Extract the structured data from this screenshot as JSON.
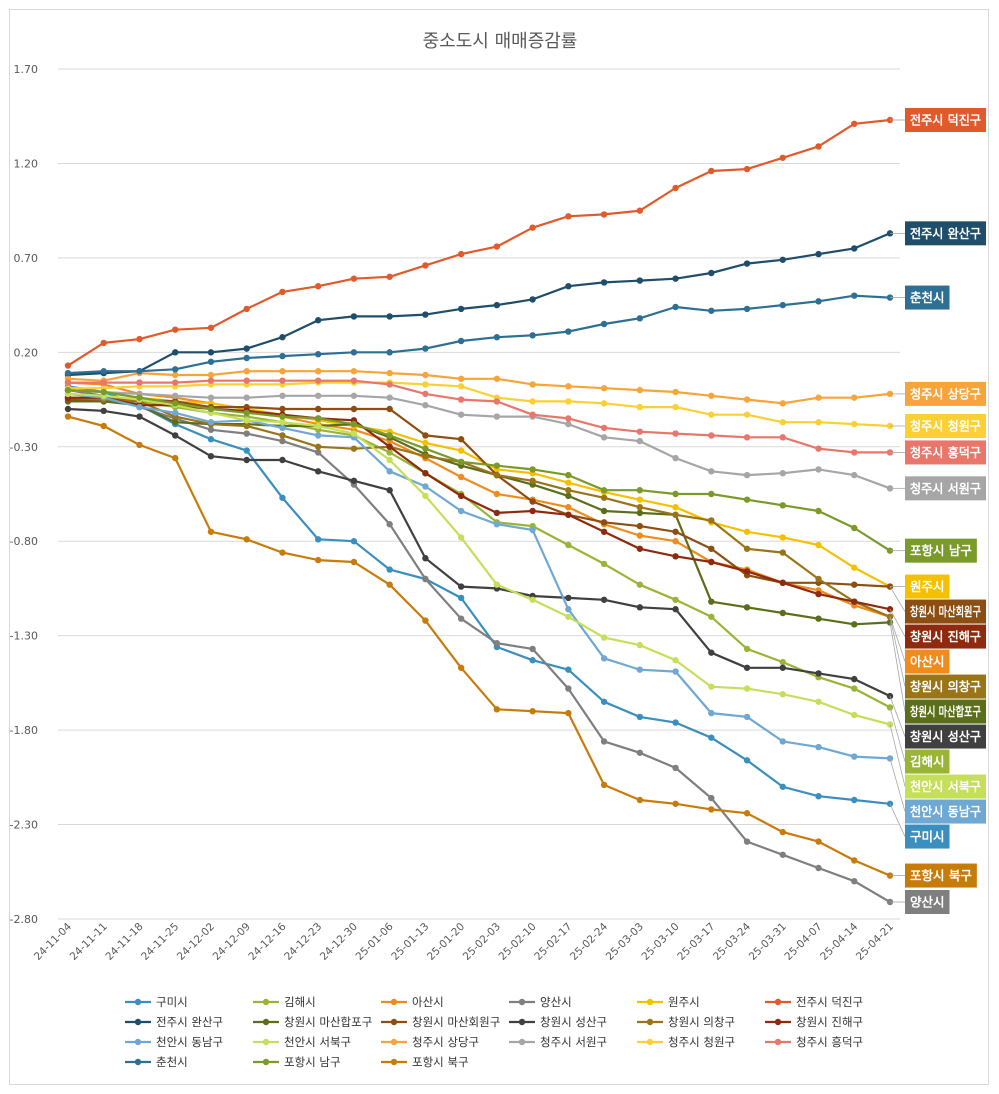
{
  "chart_data": {
    "type": "line",
    "title": "중소도시 매매증감률",
    "xlabel": "",
    "ylabel": "",
    "ylim": [
      -2.8,
      1.7
    ],
    "yticks": [
      "1.70",
      "1.20",
      "0.70",
      "0.20",
      "-0.30",
      "-0.80",
      "-1.30",
      "-1.80",
      "-2.30",
      "-2.80"
    ],
    "categories": [
      "24-11-04",
      "24-11-11",
      "24-11-18",
      "24-11-25",
      "24-12-02",
      "24-12-09",
      "24-12-16",
      "24-12-23",
      "24-12-30",
      "25-01-06",
      "25-01-13",
      "25-01-20",
      "25-02-03",
      "25-02-10",
      "25-02-17",
      "25-02-24",
      "25-03-03",
      "25-03-10",
      "25-03-17",
      "25-03-24",
      "25-03-31",
      "25-04-07",
      "25-04-14",
      "25-04-21"
    ],
    "series": [
      {
        "name": "구미시",
        "color": "#3a8fbf",
        "values": [
          0.02,
          -0.01,
          -0.08,
          -0.18,
          -0.26,
          -0.32,
          -0.57,
          -0.79,
          -0.8,
          -0.95,
          -1.0,
          -1.1,
          -1.36,
          -1.43,
          -1.48,
          -1.65,
          -1.73,
          -1.76,
          -1.84,
          -1.96,
          -2.1,
          -2.15,
          -2.17,
          -2.19
        ],
        "end_label": "구미시"
      },
      {
        "name": "김해시",
        "color": "#9ab536",
        "values": [
          0.0,
          -0.03,
          -0.06,
          -0.09,
          -0.12,
          -0.14,
          -0.17,
          -0.21,
          -0.24,
          -0.33,
          -0.44,
          -0.55,
          -0.7,
          -0.72,
          -0.82,
          -0.92,
          -1.03,
          -1.11,
          -1.2,
          -1.37,
          -1.44,
          -1.52,
          -1.58,
          -1.68
        ],
        "end_label": "김해시"
      },
      {
        "name": "아산시",
        "color": "#f08c1e",
        "values": [
          0.04,
          0.03,
          -0.02,
          -0.04,
          -0.07,
          -0.1,
          -0.14,
          -0.18,
          -0.21,
          -0.27,
          -0.36,
          -0.46,
          -0.55,
          -0.58,
          -0.62,
          -0.71,
          -0.77,
          -0.8,
          -0.91,
          -0.95,
          -1.02,
          -1.06,
          -1.14,
          -1.2
        ],
        "end_label": "아산시"
      },
      {
        "name": "양산시",
        "color": "#7f7f7f",
        "values": [
          0.0,
          -0.03,
          -0.09,
          -0.15,
          -0.21,
          -0.23,
          -0.27,
          -0.33,
          -0.5,
          -0.71,
          -1.0,
          -1.21,
          -1.34,
          -1.37,
          -1.58,
          -1.86,
          -1.92,
          -2.0,
          -2.16,
          -2.39,
          -2.46,
          -2.53,
          -2.6,
          -2.71
        ],
        "end_label": "양산시"
      },
      {
        "name": "원주시",
        "color": "#f5c000",
        "values": [
          0.0,
          -0.01,
          -0.04,
          -0.06,
          -0.07,
          -0.1,
          -0.13,
          -0.16,
          -0.19,
          -0.22,
          -0.28,
          -0.32,
          -0.42,
          -0.44,
          -0.49,
          -0.54,
          -0.58,
          -0.62,
          -0.7,
          -0.75,
          -0.78,
          -0.82,
          -0.94,
          -1.04
        ],
        "end_label": "원주시"
      },
      {
        "name": "전주시 덕진구",
        "color": "#e05a2b",
        "values": [
          0.13,
          0.25,
          0.27,
          0.32,
          0.33,
          0.43,
          0.52,
          0.55,
          0.59,
          0.6,
          0.66,
          0.72,
          0.76,
          0.86,
          0.92,
          0.93,
          0.95,
          1.07,
          1.16,
          1.17,
          1.23,
          1.29,
          1.41,
          1.43
        ],
        "end_label": "전주시 덕진구"
      },
      {
        "name": "전주시 완산구",
        "color": "#1f4e6b",
        "values": [
          0.08,
          0.09,
          0.1,
          0.2,
          0.2,
          0.22,
          0.28,
          0.37,
          0.39,
          0.39,
          0.4,
          0.43,
          0.45,
          0.48,
          0.55,
          0.57,
          0.58,
          0.59,
          0.62,
          0.67,
          0.69,
          0.72,
          0.75,
          0.83
        ],
        "end_label": "전주시 완산구"
      },
      {
        "name": "창원시 마산합포구",
        "color": "#5b6e1a",
        "values": [
          -0.06,
          -0.06,
          -0.08,
          -0.17,
          -0.18,
          -0.18,
          -0.19,
          -0.19,
          -0.18,
          -0.25,
          -0.34,
          -0.4,
          -0.45,
          -0.5,
          -0.56,
          -0.64,
          -0.65,
          -0.66,
          -1.12,
          -1.15,
          -1.18,
          -1.21,
          -1.24,
          -1.23
        ],
        "end_label": "창원시 마산합포구"
      },
      {
        "name": "창원시 마산회원구",
        "color": "#8c4e12",
        "values": [
          -0.05,
          -0.05,
          -0.05,
          -0.06,
          -0.09,
          -0.09,
          -0.1,
          -0.1,
          -0.1,
          -0.1,
          -0.24,
          -0.26,
          -0.45,
          -0.59,
          -0.66,
          -0.7,
          -0.72,
          -0.75,
          -0.84,
          -0.98,
          -1.02,
          -1.02,
          -1.03,
          -1.04
        ],
        "end_label": "창원시 마산회원구"
      },
      {
        "name": "창원시 성산구",
        "color": "#404040",
        "values": [
          -0.1,
          -0.11,
          -0.14,
          -0.24,
          -0.35,
          -0.37,
          -0.37,
          -0.43,
          -0.48,
          -0.53,
          -0.89,
          -1.04,
          -1.05,
          -1.09,
          -1.1,
          -1.11,
          -1.15,
          -1.16,
          -1.39,
          -1.47,
          -1.47,
          -1.5,
          -1.53,
          -1.62
        ],
        "end_label": "창원시 성산구"
      },
      {
        "name": "창원시 의창구",
        "color": "#9a7418",
        "values": [
          -0.04,
          -0.05,
          -0.06,
          -0.14,
          -0.18,
          -0.19,
          -0.24,
          -0.3,
          -0.31,
          -0.3,
          -0.35,
          -0.38,
          -0.45,
          -0.48,
          -0.53,
          -0.57,
          -0.62,
          -0.66,
          -0.69,
          -0.84,
          -0.86,
          -1.0,
          -1.12,
          -1.2
        ],
        "end_label": "창원시 의창구"
      },
      {
        "name": "창원시 진해구",
        "color": "#8e2a0e",
        "values": [
          -0.04,
          -0.04,
          -0.08,
          -0.08,
          -0.1,
          -0.11,
          -0.13,
          -0.15,
          -0.16,
          -0.3,
          -0.44,
          -0.56,
          -0.65,
          -0.64,
          -0.66,
          -0.75,
          -0.84,
          -0.88,
          -0.91,
          -0.96,
          -1.02,
          -1.08,
          -1.12,
          -1.16
        ],
        "end_label": "창원시 진해구"
      },
      {
        "name": "천안시 동남구",
        "color": "#6fa8d2",
        "values": [
          -0.02,
          -0.04,
          -0.09,
          -0.12,
          -0.17,
          -0.16,
          -0.2,
          -0.24,
          -0.25,
          -0.43,
          -0.51,
          -0.64,
          -0.71,
          -0.74,
          -1.16,
          -1.42,
          -1.48,
          -1.49,
          -1.71,
          -1.73,
          -1.86,
          -1.89,
          -1.94,
          -1.95
        ],
        "end_label": "천안시 동남구"
      },
      {
        "name": "천안시 서북구",
        "color": "#c5df5a",
        "values": [
          -0.02,
          -0.03,
          -0.05,
          -0.08,
          -0.12,
          -0.16,
          -0.17,
          -0.19,
          -0.23,
          -0.37,
          -0.56,
          -0.78,
          -1.03,
          -1.11,
          -1.2,
          -1.31,
          -1.35,
          -1.43,
          -1.57,
          -1.58,
          -1.61,
          -1.65,
          -1.72,
          -1.77
        ],
        "end_label": "천안시 서북구"
      },
      {
        "name": "청주시 상당구",
        "color": "#f7a43a",
        "values": [
          0.06,
          0.05,
          0.09,
          0.08,
          0.08,
          0.1,
          0.1,
          0.1,
          0.1,
          0.09,
          0.08,
          0.06,
          0.06,
          0.03,
          0.02,
          0.01,
          0.0,
          -0.01,
          -0.03,
          -0.05,
          -0.07,
          -0.04,
          -0.04,
          -0.02
        ],
        "end_label": "청주시 상당구"
      },
      {
        "name": "청주시 서원구",
        "color": "#a6a6a6",
        "values": [
          0.0,
          -0.01,
          -0.02,
          -0.03,
          -0.04,
          -0.04,
          -0.03,
          -0.03,
          -0.03,
          -0.04,
          -0.08,
          -0.13,
          -0.14,
          -0.14,
          -0.18,
          -0.25,
          -0.27,
          -0.36,
          -0.43,
          -0.45,
          -0.44,
          -0.42,
          -0.45,
          -0.52
        ],
        "end_label": "청주시 서원구"
      },
      {
        "name": "청주시 청원구",
        "color": "#fbd034",
        "values": [
          0.01,
          0.01,
          0.02,
          0.02,
          0.03,
          0.03,
          0.03,
          0.04,
          0.04,
          0.04,
          0.03,
          0.02,
          -0.04,
          -0.06,
          -0.06,
          -0.07,
          -0.09,
          -0.09,
          -0.13,
          -0.13,
          -0.17,
          -0.17,
          -0.18,
          -0.19
        ],
        "end_label": "청주시 청원구"
      },
      {
        "name": "청주시 흥덕구",
        "color": "#e8766a",
        "values": [
          0.04,
          0.04,
          0.04,
          0.04,
          0.05,
          0.05,
          0.05,
          0.05,
          0.05,
          0.03,
          -0.02,
          -0.05,
          -0.06,
          -0.13,
          -0.15,
          -0.2,
          -0.22,
          -0.23,
          -0.24,
          -0.25,
          -0.25,
          -0.31,
          -0.33,
          -0.33
        ],
        "end_label": "청주시 흥덕구"
      },
      {
        "name": "춘천시",
        "color": "#2e6f94",
        "values": [
          0.09,
          0.1,
          0.1,
          0.11,
          0.15,
          0.17,
          0.18,
          0.19,
          0.2,
          0.2,
          0.22,
          0.26,
          0.28,
          0.29,
          0.31,
          0.35,
          0.38,
          0.44,
          0.42,
          0.43,
          0.45,
          0.47,
          0.5,
          0.49
        ],
        "end_label": "춘천시"
      },
      {
        "name": "포항시 남구",
        "color": "#7a9a2a",
        "values": [
          0.0,
          -0.01,
          -0.04,
          -0.07,
          -0.1,
          -0.12,
          -0.14,
          -0.15,
          -0.18,
          -0.24,
          -0.31,
          -0.38,
          -0.4,
          -0.42,
          -0.45,
          -0.53,
          -0.53,
          -0.55,
          -0.55,
          -0.58,
          -0.61,
          -0.64,
          -0.73,
          -0.85
        ],
        "end_label": "포항시 남구"
      },
      {
        "name": "포항시 북구",
        "color": "#c77c0a",
        "values": [
          -0.14,
          -0.19,
          -0.29,
          -0.36,
          -0.75,
          -0.79,
          -0.86,
          -0.9,
          -0.91,
          -1.03,
          -1.22,
          -1.47,
          -1.69,
          -1.7,
          -1.71,
          -2.09,
          -2.17,
          -2.19,
          -2.22,
          -2.24,
          -2.34,
          -2.39,
          -2.49,
          -2.57
        ],
        "end_label": "포항시 북구"
      }
    ]
  }
}
